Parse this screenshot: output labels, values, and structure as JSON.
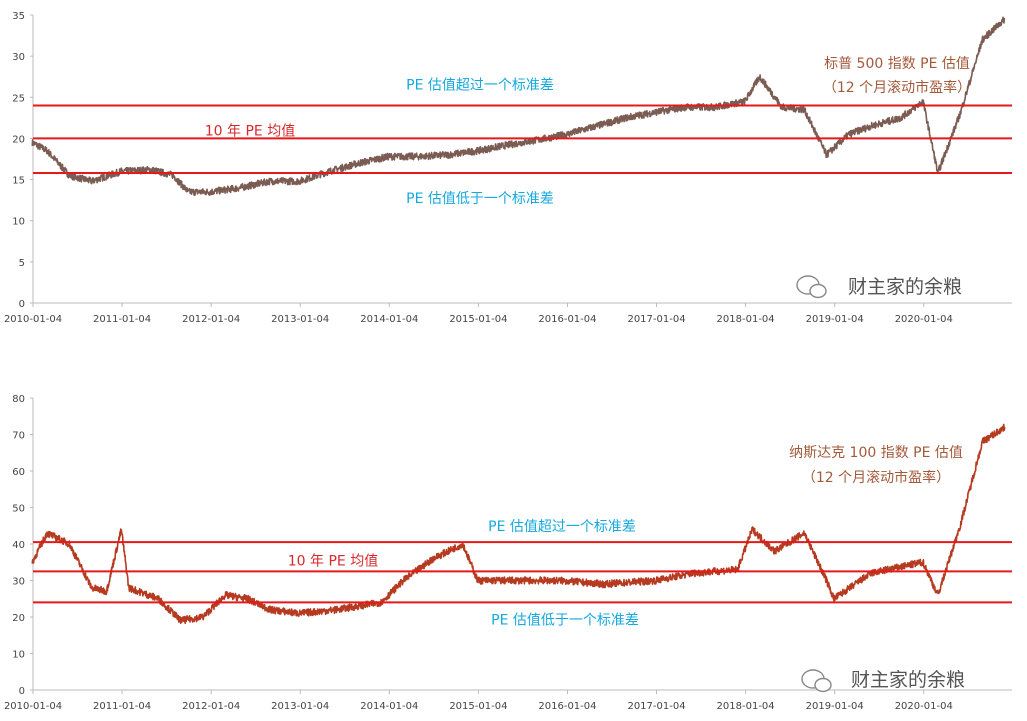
{
  "chart_data": [
    {
      "type": "line",
      "x_ticks": [
        "2010-01-04",
        "2011-01-04",
        "2012-01-04",
        "2013-01-04",
        "2014-01-04",
        "2015-01-04",
        "2016-01-04",
        "2017-01-04",
        "2018-01-04",
        "2019-01-04",
        "2020-01-04"
      ],
      "y_ticks": [
        "0",
        "5",
        "10",
        "15",
        "20",
        "25",
        "30",
        "35"
      ],
      "ylim": [
        0,
        35
      ],
      "x_range": [
        "2010-01-04",
        "2020-12-31"
      ],
      "series": [
        {
          "color": "#7b5c53",
          "x": [
            "2010-01",
            "2010-03",
            "2010-06",
            "2010-09",
            "2011-01",
            "2011-05",
            "2011-08",
            "2011-10",
            "2012-01",
            "2012-05",
            "2012-09",
            "2013-01",
            "2013-05",
            "2013-09",
            "2014-01",
            "2014-05",
            "2014-09",
            "2015-01",
            "2015-05",
            "2015-09",
            "2016-01",
            "2016-05",
            "2016-09",
            "2017-01",
            "2017-05",
            "2017-09",
            "2018-01",
            "2018-03",
            "2018-06",
            "2018-09",
            "2018-12",
            "2019-03",
            "2019-06",
            "2019-10",
            "2020-01",
            "2020-03",
            "2020-06",
            "2020-09",
            "2020-12"
          ],
          "values": [
            19.5,
            18.5,
            15.5,
            14.8,
            16.0,
            16.2,
            15.5,
            13.5,
            13.5,
            14.0,
            14.8,
            14.8,
            16.0,
            17.0,
            17.8,
            17.8,
            18.0,
            18.5,
            19.2,
            19.8,
            20.5,
            21.5,
            22.5,
            23.2,
            23.8,
            23.8,
            24.5,
            27.5,
            23.8,
            23.5,
            18.0,
            20.5,
            21.5,
            22.5,
            24.5,
            15.8,
            23.0,
            32.0,
            34.5
          ]
        }
      ],
      "reference_lines": [
        {
          "value": 24.0,
          "color": "#e5191a",
          "label": "PE 估值超过一个标准差",
          "label_color": "#15a9e0"
        },
        {
          "value": 20.0,
          "color": "#e5191a",
          "label": "10 年 PE 均值",
          "label_color": "#d9282c"
        },
        {
          "value": 15.8,
          "color": "#e5191a",
          "label": "PE 估值低于一个标准差",
          "label_color": "#15a9e0"
        }
      ],
      "annotation": {
        "line1": "标普 500 指数 PE 估值",
        "line2": "（12 个月滚动市盈率）",
        "color": "#a35a3a"
      },
      "watermark": "财主家的余粮"
    },
    {
      "type": "line",
      "x_ticks": [
        "2010-01-04",
        "2011-01-04",
        "2012-01-04",
        "2013-01-04",
        "2014-01-04",
        "2015-01-04",
        "2016-01-04",
        "2017-01-04",
        "2018-01-04",
        "2019-01-04",
        "2020-01-04"
      ],
      "y_ticks": [
        "0",
        "10",
        "20",
        "30",
        "40",
        "50",
        "60",
        "70",
        "80"
      ],
      "ylim": [
        0,
        80
      ],
      "x_range": [
        "2010-01-04",
        "2020-12-31"
      ],
      "series": [
        {
          "color": "#b53a20",
          "x": [
            "2010-01",
            "2010-03",
            "2010-06",
            "2010-09",
            "2010-11",
            "2011-01",
            "2011-02",
            "2011-06",
            "2011-09",
            "2011-12",
            "2012-03",
            "2012-06",
            "2012-09",
            "2013-01",
            "2013-06",
            "2013-12",
            "2014-03",
            "2014-07",
            "2014-11",
            "2015-01",
            "2015-06",
            "2015-12",
            "2016-06",
            "2017-01",
            "2017-06",
            "2017-12",
            "2018-02",
            "2018-05",
            "2018-09",
            "2018-12",
            "2019-01",
            "2019-06",
            "2020-01",
            "2020-03",
            "2020-06",
            "2020-09",
            "2020-12"
          ],
          "values": [
            35,
            43,
            40,
            28,
            27,
            44,
            28,
            25,
            19,
            20,
            26,
            25,
            22,
            21,
            22,
            24,
            30,
            36,
            40,
            30,
            30,
            30,
            29,
            30,
            32,
            33,
            44,
            38,
            43,
            30,
            25,
            32,
            35,
            26,
            45,
            68,
            72
          ]
        }
      ],
      "reference_lines": [
        {
          "value": 40.5,
          "color": "#e5191a",
          "label": "PE 估值超过一个标准差",
          "label_color": "#15a9e0"
        },
        {
          "value": 32.5,
          "color": "#e5191a",
          "label": "10 年 PE 均值",
          "label_color": "#d9282c"
        },
        {
          "value": 24.0,
          "color": "#e5191a",
          "label": "PE 估值低于一个标准差",
          "label_color": "#15a9e0"
        }
      ],
      "annotation": {
        "line1": "纳斯达克 100 指数 PE 估值",
        "line2": "（12 个月滚动市盈率）",
        "color": "#a35a3a"
      },
      "watermark": "财主家的余粮"
    }
  ]
}
